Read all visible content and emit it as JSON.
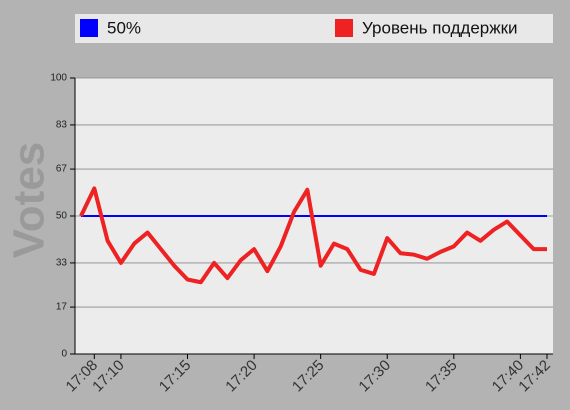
{
  "chart_data": {
    "type": "line",
    "y_label": "Votes",
    "x": [
      "17:07",
      "17:08",
      "17:09",
      "17:10",
      "17:11",
      "17:12",
      "17:13",
      "17:14",
      "17:15",
      "17:16",
      "17:17",
      "17:18",
      "17:19",
      "17:20",
      "17:21",
      "17:22",
      "17:23",
      "17:24",
      "17:25",
      "17:26",
      "17:27",
      "17:28",
      "17:29",
      "17:30",
      "17:31",
      "17:32",
      "17:33",
      "17:34",
      "17:35",
      "17:36",
      "17:37",
      "17:38",
      "17:39",
      "17:40",
      "17:41",
      "17:42"
    ],
    "series": [
      {
        "name": "50%",
        "color": "#0000ff",
        "values": [
          50,
          50,
          50,
          50,
          50,
          50,
          50,
          50,
          50,
          50,
          50,
          50,
          50,
          50,
          50,
          50,
          50,
          50,
          50,
          50,
          50,
          50,
          50,
          50,
          50,
          50,
          50,
          50,
          50,
          50,
          50,
          50,
          50,
          50,
          50,
          50
        ]
      },
      {
        "name": "Уровень поддержки",
        "color": "#ee2222",
        "values": [
          50,
          60,
          41,
          33,
          40,
          44,
          38,
          32,
          27,
          26,
          33,
          27.5,
          34,
          38,
          30,
          39,
          51.5,
          59.5,
          32,
          40,
          38,
          30.5,
          29,
          42,
          36.5,
          36,
          34.5,
          37,
          39,
          44,
          41,
          45,
          48,
          43,
          38,
          38
        ]
      }
    ],
    "xlim": [
      "17:06:33",
      "17:42:27"
    ],
    "xticks": [
      "17:08",
      "17:10",
      "17:15",
      "17:20",
      "17:25",
      "17:30",
      "17:35",
      "17:40",
      "17:42"
    ],
    "ylim": [
      0,
      100
    ],
    "yticks": [
      0,
      17,
      33,
      50,
      67,
      83,
      100
    ],
    "grid": true
  }
}
